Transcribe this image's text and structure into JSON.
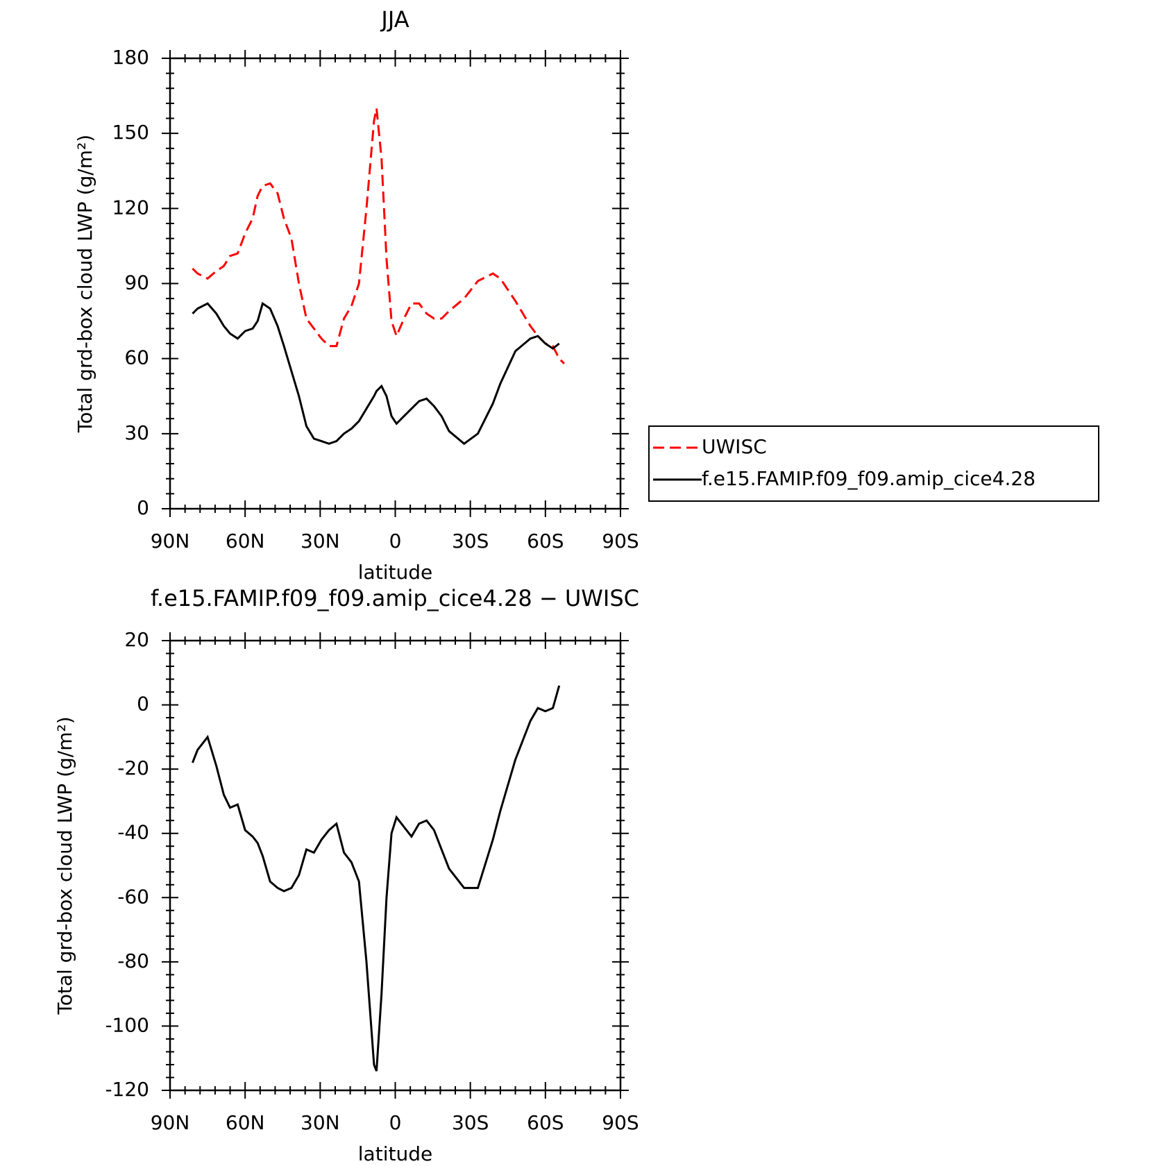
{
  "chart_data": [
    {
      "type": "line",
      "title": "JJA",
      "xlabel": "latitude",
      "ylabel": "Total grd-box cloud LWP (g/m²)",
      "x": [
        81,
        79,
        75,
        71.5,
        68.5,
        66,
        63,
        60,
        57,
        55,
        53,
        50,
        47,
        44.5,
        41.5,
        38.5,
        35.5,
        32.5,
        29.5,
        26.5,
        23.5,
        20.5,
        17.5,
        14.5,
        11.5,
        8.5,
        7.5,
        5.5,
        3.5,
        1.5,
        -0.5,
        -3.5,
        -6.5,
        -9.5,
        -12.5,
        -15.5,
        -18.5,
        -21.5,
        -27.5,
        -33,
        -39,
        -42,
        -48,
        -54,
        -57,
        -60,
        -63,
        -65.5,
        -67.5
      ],
      "series": [
        {
          "name": "UWISC",
          "color": "#ff0000",
          "dashed": true,
          "values": [
            96,
            94,
            92,
            95,
            97,
            101,
            102,
            110,
            116,
            125,
            129,
            130,
            126,
            116,
            108,
            90,
            76,
            72,
            68,
            65,
            65,
            76,
            81,
            90,
            120,
            155,
            160,
            140,
            100,
            75,
            69,
            76,
            82,
            82,
            78,
            76,
            76,
            79,
            84,
            91,
            94,
            92,
            83,
            73,
            69,
            66,
            65,
            60,
            58
          ]
        },
        {
          "name": "f.e15.FAMIP.f09_f09.amip_cice4.28",
          "color": "#000000",
          "dashed": false,
          "values": [
            78,
            80,
            82,
            78,
            73,
            70,
            68,
            71,
            72,
            75,
            82,
            80,
            73,
            65,
            55,
            45,
            33,
            28,
            27,
            26,
            27,
            30,
            32,
            35,
            40,
            45,
            47,
            49,
            45,
            37,
            34,
            37,
            40,
            43,
            44,
            41,
            37,
            31,
            26,
            30,
            42,
            50,
            63,
            68,
            69,
            66,
            64,
            66,
            null
          ]
        }
      ],
      "xlim": [
        90,
        -90
      ],
      "xticks": [
        {
          "value": 90,
          "label": "90N"
        },
        {
          "value": 60,
          "label": "60N"
        },
        {
          "value": 30,
          "label": "30N"
        },
        0,
        {
          "value": -30,
          "label": "30S"
        },
        {
          "value": -60,
          "label": "60S"
        },
        {
          "value": -90,
          "label": "90S"
        }
      ],
      "ylim": [
        0,
        180
      ],
      "yticks": [
        0,
        30,
        60,
        90,
        120,
        150,
        180
      ],
      "legend": "right"
    },
    {
      "type": "line",
      "title": "f.e15.FAMIP.f09_f09.amip_cice4.28 − UWISC",
      "xlabel": "latitude",
      "ylabel": "Total grd-box cloud LWP (g/m²)",
      "x": [
        81,
        79,
        75,
        71.5,
        68.5,
        66,
        63,
        60,
        57,
        55,
        53,
        50,
        47,
        44.5,
        41.5,
        38.5,
        35.5,
        32.5,
        29.5,
        26.5,
        23.5,
        20.5,
        17.5,
        14.5,
        11.5,
        8.5,
        7.5,
        5.5,
        3.5,
        1.5,
        -0.5,
        -3.5,
        -6.5,
        -9.5,
        -12.5,
        -15.5,
        -18.5,
        -21.5,
        -27.5,
        -33,
        -39,
        -42,
        -48,
        -54,
        -57,
        -60,
        -63,
        -65.5
      ],
      "series": [
        {
          "color": "#000000",
          "dashed": false,
          "values": [
            -18,
            -14,
            -10,
            -19,
            -28,
            -32,
            -31,
            -39,
            -41,
            -43,
            -47,
            -55,
            -57,
            -58,
            -57,
            -53,
            -45,
            -46,
            -42,
            -39,
            -37,
            -46,
            -49,
            -55,
            -80,
            -112,
            -114,
            -90,
            -60,
            -40,
            -35,
            -38,
            -41,
            -37,
            -36,
            -39,
            -45,
            -51,
            -57,
            -57,
            -42,
            -33,
            -17,
            -5,
            -1,
            -2,
            -1,
            6
          ]
        }
      ],
      "xlim": [
        90,
        -90
      ],
      "xticks": [
        {
          "value": 90,
          "label": "90N"
        },
        {
          "value": 60,
          "label": "60N"
        },
        {
          "value": 30,
          "label": "30N"
        },
        0,
        {
          "value": -30,
          "label": "30S"
        },
        {
          "value": -60,
          "label": "60S"
        },
        {
          "value": -90,
          "label": "90S"
        }
      ],
      "ylim": [
        -120,
        20
      ],
      "yticks": [
        -120,
        -100,
        -80,
        -60,
        -40,
        -20,
        0,
        20
      ]
    }
  ]
}
